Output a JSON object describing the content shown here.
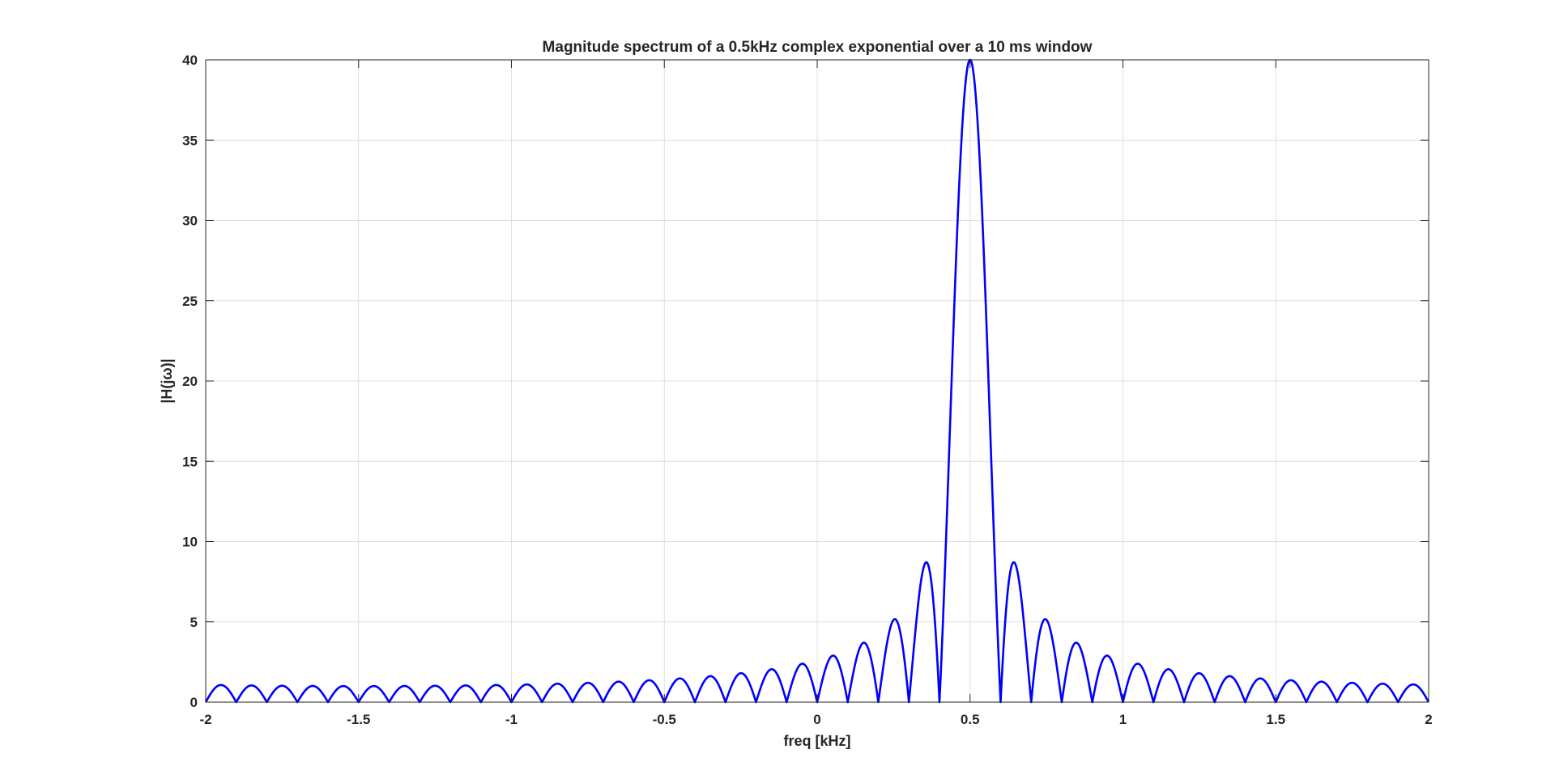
{
  "chart_data": {
    "type": "line",
    "title": "Magnitude spectrum of a 0.5kHz complex exponential over a 10 ms window",
    "xlabel": "freq [kHz]",
    "ylabel": "|H(jω)|",
    "xlim": [
      -2,
      2
    ],
    "ylim": [
      0,
      40
    ],
    "xticks": [
      -2,
      -1.5,
      -1,
      -0.5,
      0,
      0.5,
      1,
      1.5,
      2
    ],
    "xtick_labels": [
      "-2",
      "-1.5",
      "-1",
      "-0.5",
      "0",
      "0.5",
      "1",
      "1.5",
      "2"
    ],
    "yticks": [
      0,
      5,
      10,
      15,
      20,
      25,
      30,
      35,
      40
    ],
    "ytick_labels": [
      "0",
      "5",
      "10",
      "15",
      "20",
      "25",
      "30",
      "35",
      "40"
    ],
    "grid": true,
    "series": [
      {
        "color": "#0000ff",
        "peak_frequency_khz": 0.5,
        "peak_magnitude": 40,
        "null_spacing_khz": 0.1,
        "sidelobe_peaks": [
          {
            "x": 0.357,
            "y": 8.7
          },
          {
            "x": 0.643,
            "y": 8.7
          },
          {
            "x": 0.255,
            "y": 5.1
          },
          {
            "x": 0.745,
            "y": 5.1
          },
          {
            "x": 0.154,
            "y": 3.6
          },
          {
            "x": 0.846,
            "y": 3.6
          },
          {
            "x": 0.052,
            "y": 2.8
          },
          {
            "x": 0.948,
            "y": 2.8
          },
          {
            "x": -0.05,
            "y": 2.3
          },
          {
            "x": 1.05,
            "y": 2.3
          },
          {
            "x": -1.95,
            "y": 1.0
          },
          {
            "x": 1.95,
            "y": 1.0
          }
        ]
      }
    ]
  }
}
